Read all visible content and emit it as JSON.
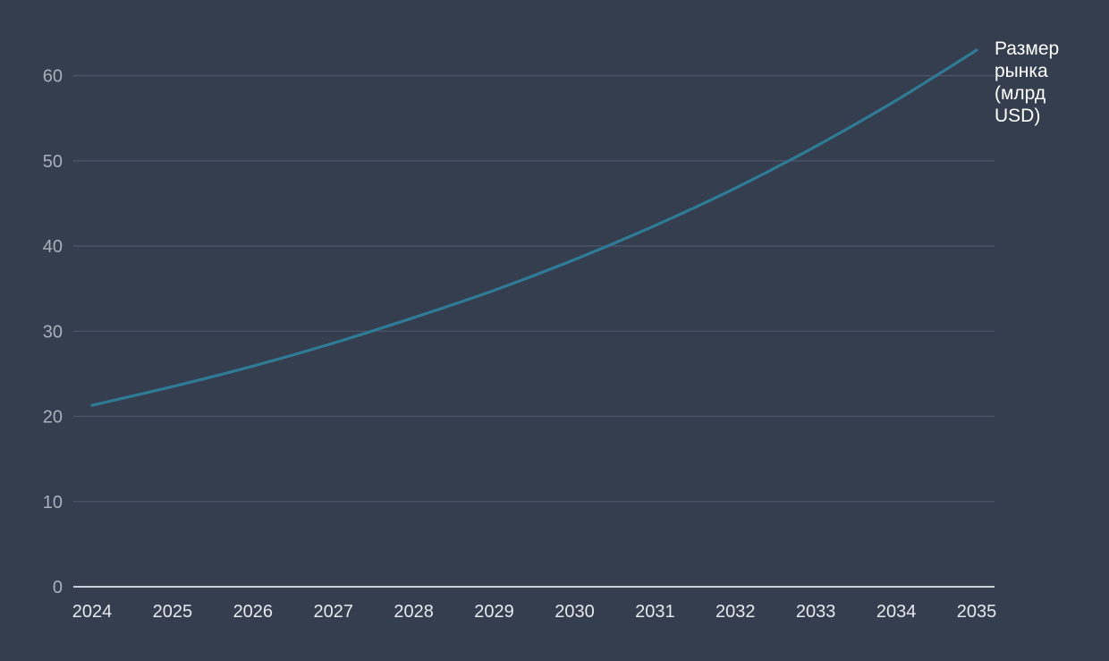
{
  "chart_data": {
    "type": "line",
    "title": "",
    "xlabel": "",
    "ylabel": "",
    "x": [
      2024,
      2025,
      2026,
      2027,
      2028,
      2029,
      2030,
      2031,
      2032,
      2033,
      2034,
      2035
    ],
    "series": [
      {
        "name": "Размер рынка (млрд USD)",
        "name_lines": [
          "Размер",
          "рынка",
          "(млрд",
          "USD)"
        ],
        "values": [
          21.3,
          23.5,
          25.9,
          28.6,
          31.6,
          34.8,
          38.4,
          42.4,
          46.8,
          51.7,
          57.1,
          63.0
        ],
        "color": "#2f7a95"
      }
    ],
    "xticks": [
      "2024",
      "2025",
      "2026",
      "2027",
      "2028",
      "2029",
      "2030",
      "2031",
      "2032",
      "2033",
      "2034",
      "2035"
    ],
    "yticks": [
      "0",
      "10",
      "20",
      "30",
      "40",
      "50",
      "60"
    ],
    "ylim": [
      0,
      63
    ],
    "grid": true,
    "legend": "end-of-line label"
  }
}
